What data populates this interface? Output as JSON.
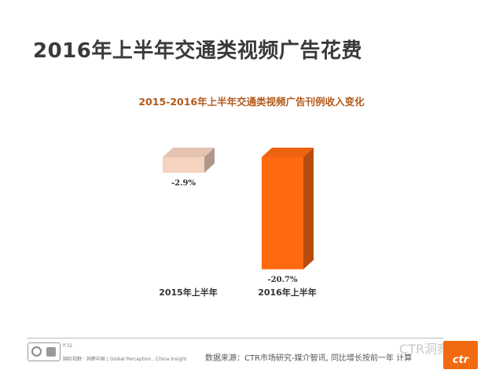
{
  "slide": {
    "title": "2016年上半年交通类视频广告花费"
  },
  "chart_data": {
    "type": "bar",
    "title": "2015-2016年上半年交通类视频广告刊例收入变化",
    "categories": [
      "2015年上半年",
      "2016年上半年"
    ],
    "values": [
      -2.9,
      -20.7
    ],
    "value_labels": [
      "-2.9%",
      "-20.7%"
    ],
    "unit": "%",
    "colors": [
      "#f6d2c0",
      "#ff6a10"
    ],
    "grid": false,
    "legend": "none"
  },
  "footer": {
    "page": "P.32",
    "slogan": "国际视野 · 洞察中国 | Global Perception , China Insight",
    "source": "数据来源：CTR市场研究-媒介智讯, 同比增长按前一年    计算",
    "watermark": "CTR洞察",
    "logo_text": "ctr"
  }
}
